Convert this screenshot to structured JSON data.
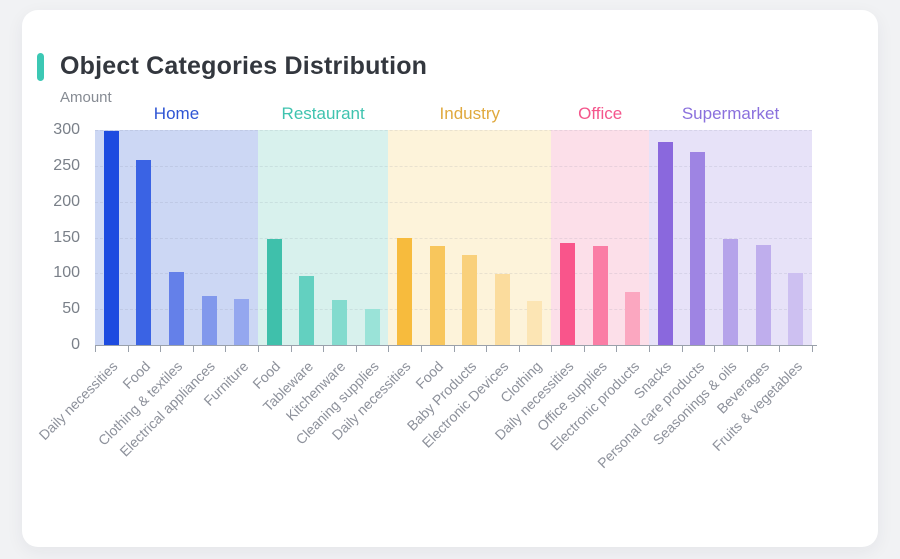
{
  "page": {
    "accent_color": "#3cc8b4",
    "card_background": "#ffffff",
    "page_background": "#f1f2f4"
  },
  "chart_data": {
    "type": "bar",
    "title": "Object Categories Distribution",
    "ylabel": "Amount",
    "ylim": [
      0,
      300
    ],
    "yticks": [
      0,
      50,
      100,
      150,
      200,
      250,
      300
    ],
    "grid": "dashed-horizontal",
    "legend_position": "group-labels-above-bands",
    "groups": [
      {
        "name": "Home",
        "label_color": "#2f55d4",
        "band_color": "#ccd7f4",
        "bars": [
          {
            "label": "Daily necessities",
            "value": 298,
            "color": "#1d4be0"
          },
          {
            "label": "Food",
            "value": 258,
            "color": "#3a63e4"
          },
          {
            "label": "Clothing & textiles",
            "value": 102,
            "color": "#6480e9"
          },
          {
            "label": "Electrical appliances",
            "value": 68,
            "color": "#8198ec"
          },
          {
            "label": "Furniture",
            "value": 64,
            "color": "#94a7ef"
          }
        ]
      },
      {
        "name": "Restaurant",
        "label_color": "#3fc3af",
        "band_color": "#d8f1ed",
        "bars": [
          {
            "label": "Food",
            "value": 148,
            "color": "#3fc0ab"
          },
          {
            "label": "Tableware",
            "value": 96,
            "color": "#63d0c0"
          },
          {
            "label": "Kitchenware",
            "value": 63,
            "color": "#83dbce"
          },
          {
            "label": "Cleaning supplies",
            "value": 50,
            "color": "#9ae3d8"
          }
        ]
      },
      {
        "name": "Industry",
        "label_color": "#e0a93e",
        "band_color": "#fdf3da",
        "bars": [
          {
            "label": "Daily necessities",
            "value": 150,
            "color": "#f7bb3d"
          },
          {
            "label": "Food",
            "value": 138,
            "color": "#f8c65c"
          },
          {
            "label": "Baby Products",
            "value": 125,
            "color": "#f9d07b"
          },
          {
            "label": "Electronic Devices",
            "value": 99,
            "color": "#fbdc9d"
          },
          {
            "label": "Clothing",
            "value": 62,
            "color": "#fce5b4"
          }
        ]
      },
      {
        "name": "Office",
        "label_color": "#f4568c",
        "band_color": "#fcdfe9",
        "bars": [
          {
            "label": "Daily necessities",
            "value": 142,
            "color": "#f9558b"
          },
          {
            "label": "Office supplies",
            "value": 138,
            "color": "#fa7da5"
          },
          {
            "label": "Electronic products",
            "value": 74,
            "color": "#fba7c0"
          }
        ]
      },
      {
        "name": "Supermarket",
        "label_color": "#8a70dd",
        "band_color": "#e7e2f8",
        "bars": [
          {
            "label": "Snacks",
            "value": 283,
            "color": "#8a68dd"
          },
          {
            "label": "Personal care products",
            "value": 270,
            "color": "#9e84e3"
          },
          {
            "label": "Seasonings & oils",
            "value": 148,
            "color": "#b5a3ea"
          },
          {
            "label": "Beverages",
            "value": 140,
            "color": "#bfaeed"
          },
          {
            "label": "Fruits & vegetables",
            "value": 101,
            "color": "#cdc0f1"
          }
        ]
      }
    ]
  }
}
